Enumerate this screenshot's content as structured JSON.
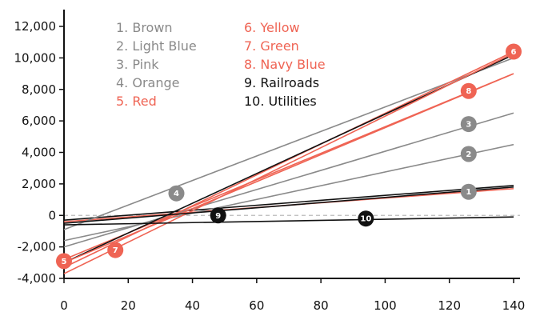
{
  "colors": {
    "gray": "#8a8a8a",
    "black": "#111111",
    "red": "#ef6454",
    "zero_line": "#bbbbbb"
  },
  "chart_data": {
    "type": "line",
    "title": "",
    "xlabel": "",
    "ylabel": "",
    "xlim": [
      0,
      140
    ],
    "ylim": [
      -4000,
      12000
    ],
    "x_ticks": [
      "0",
      "20",
      "40",
      "60",
      "80",
      "100",
      "120",
      "140"
    ],
    "y_ticks": [
      "12,000",
      "10,000",
      "8,000",
      "6,000",
      "4,000",
      "2,000",
      "0",
      "-2,000",
      "-4,000"
    ],
    "zero_line": "dashed",
    "legend": [
      {
        "text": "1. Brown",
        "color": "gray"
      },
      {
        "text": "2. Light Blue",
        "color": "gray"
      },
      {
        "text": "3. Pink",
        "color": "gray"
      },
      {
        "text": "4. Orange",
        "color": "gray"
      },
      {
        "text": "5. Red",
        "color": "red"
      },
      {
        "text": "6. Yellow",
        "color": "red"
      },
      {
        "text": "7. Green",
        "color": "red"
      },
      {
        "text": "8. Navy Blue",
        "color": "red"
      },
      {
        "text": "9. Railroads",
        "color": "black"
      },
      {
        "text": "10. Utilities",
        "color": "black"
      }
    ],
    "series": [
      {
        "id": "1",
        "color": "black",
        "points": [
          [
            0,
            -300
          ],
          [
            140,
            1900
          ]
        ],
        "marker": [
          126,
          1500
        ],
        "marker_color": "gray"
      },
      {
        "id": "1b",
        "color": "red",
        "points": [
          [
            0,
            -400
          ],
          [
            140,
            1700
          ]
        ]
      },
      {
        "id": "2",
        "color": "gray",
        "points": [
          [
            0,
            -1600
          ],
          [
            140,
            4500
          ]
        ],
        "marker": [
          126,
          3900
        ],
        "marker_color": "gray"
      },
      {
        "id": "3",
        "color": "gray",
        "points": [
          [
            0,
            -2000
          ],
          [
            140,
            6500
          ]
        ],
        "marker": [
          126,
          5800
        ],
        "marker_color": "gray"
      },
      {
        "id": "4",
        "color": "gray",
        "points": [
          [
            0,
            -900
          ],
          [
            140,
            10000
          ]
        ],
        "marker": [
          35,
          1400
        ],
        "marker_color": "gray"
      },
      {
        "id": "5",
        "color": "red",
        "points": [
          [
            0,
            -2800
          ],
          [
            140,
            9000
          ]
        ],
        "marker": [
          0,
          -2900
        ],
        "marker_color": "red"
      },
      {
        "id": "6",
        "color": "red",
        "points": [
          [
            0,
            -3300
          ],
          [
            140,
            10400
          ]
        ],
        "marker": [
          140,
          10400
        ],
        "marker_color": "red"
      },
      {
        "id": "6b",
        "color": "black",
        "points": [
          [
            0,
            -3000
          ],
          [
            140,
            10200
          ]
        ]
      },
      {
        "id": "7",
        "color": "red",
        "points": [
          [
            0,
            -3700
          ],
          [
            140,
            10300
          ]
        ],
        "marker": [
          16,
          -2200
        ],
        "marker_color": "red"
      },
      {
        "id": "8",
        "color": "red",
        "points": [
          [
            0,
            -3000
          ],
          [
            140,
            9000
          ]
        ],
        "marker": [
          126,
          7900
        ],
        "marker_color": "red"
      },
      {
        "id": "9",
        "color": "black",
        "points": [
          [
            0,
            -500
          ],
          [
            140,
            1800
          ]
        ],
        "marker": [
          48,
          0
        ],
        "marker_color": "black"
      },
      {
        "id": "10",
        "color": "black",
        "points": [
          [
            0,
            -600
          ],
          [
            140,
            -100
          ]
        ],
        "marker": [
          94,
          -200
        ],
        "marker_color": "black"
      }
    ],
    "marker_labels": [
      "1",
      "2",
      "3",
      "4",
      "5",
      "6",
      "7",
      "8",
      "9",
      "10"
    ]
  }
}
